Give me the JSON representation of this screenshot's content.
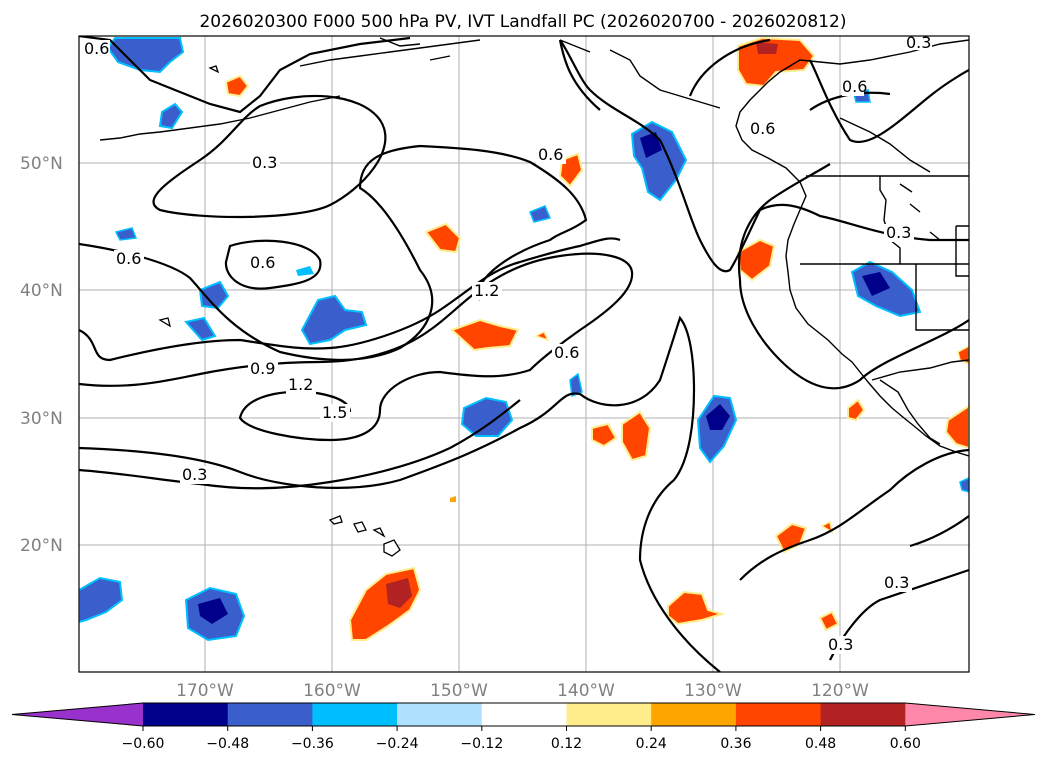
{
  "title": "2026020300 F000 500 hPa PV, IVT Landfall PC (2026020700 - 2026020812)",
  "map": {
    "lat_labels": [
      "50°N",
      "40°N",
      "30°N",
      "20°N"
    ],
    "lon_labels": [
      "170°W",
      "160°W",
      "150°W",
      "140°W",
      "130°W",
      "120°W"
    ],
    "contour_labels": [
      "0.6",
      "0.3",
      "0.3",
      "0.6",
      "0.6",
      "0.6",
      "0.6",
      "1.2",
      "0.9",
      "1.2",
      "1.5",
      "0.6",
      "0.3",
      "0.6",
      "0.3",
      "0.3",
      "0.3"
    ]
  },
  "colorbar": {
    "tick_labels": [
      "−0.60",
      "−0.48",
      "−0.36",
      "−0.24",
      "−0.12",
      "0.12",
      "0.24",
      "0.36",
      "0.48",
      "0.60"
    ],
    "colors": [
      "#9932cc",
      "#00008b",
      "#3a5fcd",
      "#00bfff",
      "#b0e2ff",
      "#ffffff",
      "#ffec8b",
      "#ffa500",
      "#ff4500",
      "#b22222",
      "#ff88aa"
    ]
  }
}
